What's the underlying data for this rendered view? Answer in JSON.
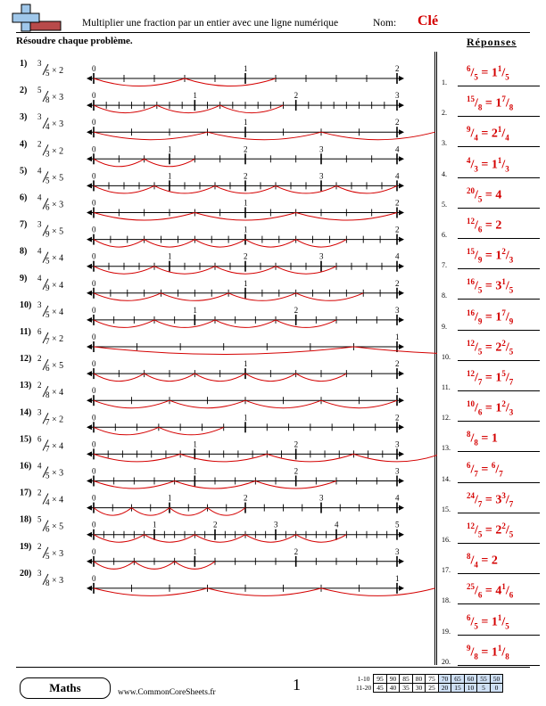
{
  "header": {
    "title": "Multiplier une fraction par un entier avec une ligne numérique",
    "nom_label": "Nom:",
    "key_label": "Clé"
  },
  "instructions": "Résoudre chaque problème.",
  "answers_title": "Réponses",
  "colors": {
    "red": "#d40000",
    "score_highlight": "#cfe0f5"
  },
  "problems": [
    {
      "label": "1)",
      "num": 3,
      "den": 5,
      "mult": 2,
      "tick_labels": [
        "0",
        "1",
        "2"
      ]
    },
    {
      "label": "2)",
      "num": 5,
      "den": 8,
      "mult": 3,
      "tick_labels": [
        "0",
        "1",
        "2",
        "3"
      ]
    },
    {
      "label": "3)",
      "num": 3,
      "den": 4,
      "mult": 3,
      "tick_labels": [
        "0",
        "1",
        "2"
      ]
    },
    {
      "label": "4)",
      "num": 2,
      "den": 3,
      "mult": 2,
      "tick_labels": [
        "0",
        "1",
        "2",
        "3",
        "4"
      ]
    },
    {
      "label": "5)",
      "num": 4,
      "den": 5,
      "mult": 5,
      "tick_labels": [
        "0",
        "1",
        "2",
        "3",
        "4"
      ]
    },
    {
      "label": "6)",
      "num": 4,
      "den": 6,
      "mult": 3,
      "tick_labels": [
        "0",
        "1",
        "2"
      ]
    },
    {
      "label": "7)",
      "num": 3,
      "den": 9,
      "mult": 5,
      "tick_labels": [
        "0",
        "1",
        "2"
      ]
    },
    {
      "label": "8)",
      "num": 4,
      "den": 5,
      "mult": 4,
      "tick_labels": [
        "0",
        "1",
        "2",
        "3",
        "4"
      ]
    },
    {
      "label": "9)",
      "num": 4,
      "den": 9,
      "mult": 4,
      "tick_labels": [
        "0",
        "1",
        "2"
      ]
    },
    {
      "label": "10)",
      "num": 3,
      "den": 5,
      "mult": 4,
      "tick_labels": [
        "0",
        "1",
        "2",
        "3"
      ]
    },
    {
      "label": "11)",
      "num": 6,
      "den": 7,
      "mult": 2,
      "tick_labels": [
        "0",
        "1"
      ]
    },
    {
      "label": "12)",
      "num": 2,
      "den": 6,
      "mult": 5,
      "tick_labels": [
        "0",
        "1",
        "2"
      ]
    },
    {
      "label": "13)",
      "num": 2,
      "den": 8,
      "mult": 4,
      "tick_labels": [
        "0",
        "1"
      ]
    },
    {
      "label": "14)",
      "num": 3,
      "den": 7,
      "mult": 2,
      "tick_labels": [
        "0",
        "1",
        "2"
      ]
    },
    {
      "label": "15)",
      "num": 6,
      "den": 7,
      "mult": 4,
      "tick_labels": [
        "0",
        "1",
        "2",
        "3"
      ]
    },
    {
      "label": "16)",
      "num": 4,
      "den": 5,
      "mult": 3,
      "tick_labels": [
        "0",
        "1",
        "2",
        "3"
      ]
    },
    {
      "label": "17)",
      "num": 2,
      "den": 4,
      "mult": 4,
      "tick_labels": [
        "0",
        "1",
        "2",
        "3",
        "4"
      ]
    },
    {
      "label": "18)",
      "num": 5,
      "den": 6,
      "mult": 5,
      "tick_labels": [
        "0",
        "1",
        "2",
        "3",
        "4",
        "5"
      ]
    },
    {
      "label": "19)",
      "num": 2,
      "den": 5,
      "mult": 3,
      "tick_labels": [
        "0",
        "1",
        "2",
        "3"
      ]
    },
    {
      "label": "20)",
      "num": 3,
      "den": 8,
      "mult": 3,
      "tick_labels": [
        "0",
        "1"
      ]
    }
  ],
  "answers": [
    {
      "n": "1.",
      "num": "6",
      "den": "5",
      "whole": "1",
      "fnum": "1",
      "fden": "5"
    },
    {
      "n": "2.",
      "num": "15",
      "den": "8",
      "whole": "1",
      "fnum": "7",
      "fden": "8"
    },
    {
      "n": "3.",
      "num": "9",
      "den": "4",
      "whole": "2",
      "fnum": "1",
      "fden": "4"
    },
    {
      "n": "4.",
      "num": "4",
      "den": "3",
      "whole": "1",
      "fnum": "1",
      "fden": "3"
    },
    {
      "n": "5.",
      "num": "20",
      "den": "5",
      "whole": "4",
      "fnum": "",
      "fden": ""
    },
    {
      "n": "6.",
      "num": "12",
      "den": "6",
      "whole": "2",
      "fnum": "",
      "fden": ""
    },
    {
      "n": "7.",
      "num": "15",
      "den": "9",
      "whole": "1",
      "fnum": "2",
      "fden": "3"
    },
    {
      "n": "8.",
      "num": "16",
      "den": "5",
      "whole": "3",
      "fnum": "1",
      "fden": "5"
    },
    {
      "n": "9.",
      "num": "16",
      "den": "9",
      "whole": "1",
      "fnum": "7",
      "fden": "9"
    },
    {
      "n": "10.",
      "num": "12",
      "den": "5",
      "whole": "2",
      "fnum": "2",
      "fden": "5"
    },
    {
      "n": "11.",
      "num": "12",
      "den": "7",
      "whole": "1",
      "fnum": "5",
      "fden": "7"
    },
    {
      "n": "12.",
      "num": "10",
      "den": "6",
      "whole": "1",
      "fnum": "2",
      "fden": "3"
    },
    {
      "n": "13.",
      "num": "8",
      "den": "8",
      "whole": "1",
      "fnum": "",
      "fden": ""
    },
    {
      "n": "14.",
      "num": "6",
      "den": "7",
      "whole": "",
      "fnum": "6",
      "fden": "7"
    },
    {
      "n": "15.",
      "num": "24",
      "den": "7",
      "whole": "3",
      "fnum": "3",
      "fden": "7"
    },
    {
      "n": "16.",
      "num": "12",
      "den": "5",
      "whole": "2",
      "fnum": "2",
      "fden": "5"
    },
    {
      "n": "17.",
      "num": "8",
      "den": "4",
      "whole": "2",
      "fnum": "",
      "fden": ""
    },
    {
      "n": "18.",
      "num": "25",
      "den": "6",
      "whole": "4",
      "fnum": "1",
      "fden": "6"
    },
    {
      "n": "19.",
      "num": "6",
      "den": "5",
      "whole": "1",
      "fnum": "1",
      "fden": "5"
    },
    {
      "n": "20.",
      "num": "9",
      "den": "8",
      "whole": "1",
      "fnum": "1",
      "fden": "8"
    }
  ],
  "footer": {
    "badge": "Maths",
    "website": "www.CommonCoreSheets.fr",
    "page": "1",
    "score_rows": [
      {
        "label": "1-10",
        "values": [
          "95",
          "90",
          "85",
          "80",
          "75",
          "70",
          "65",
          "60",
          "55",
          "50"
        ]
      },
      {
        "label": "11-20",
        "values": [
          "45",
          "40",
          "35",
          "30",
          "25",
          "20",
          "15",
          "10",
          "5",
          "0"
        ]
      }
    ]
  }
}
